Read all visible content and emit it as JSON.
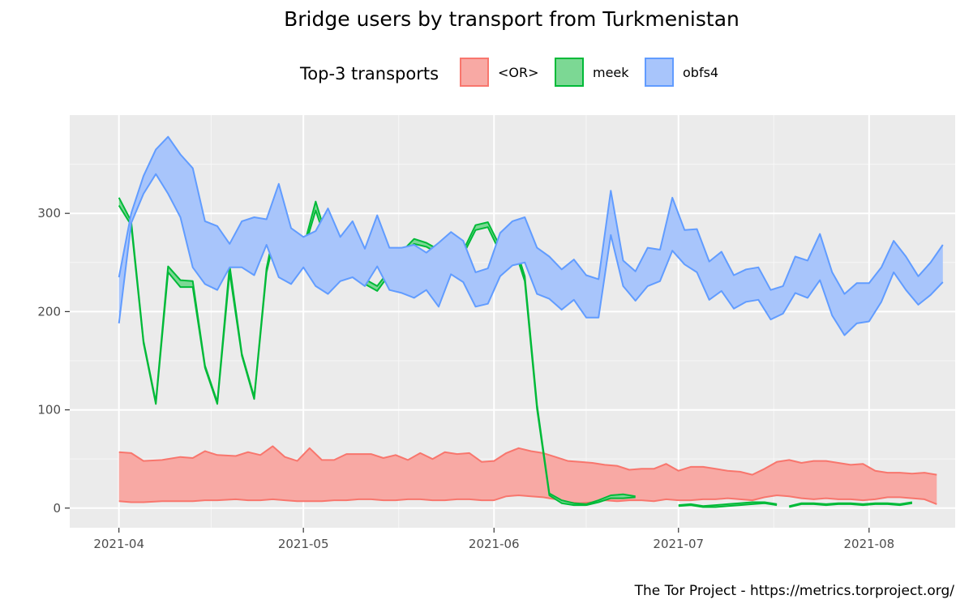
{
  "chart_data": {
    "type": "area",
    "title": "Bridge users by transport from Turkmenistan",
    "caption": "The Tor Project - https://metrics.torproject.org/",
    "legend": {
      "title": "Top-3 transports",
      "position": "top",
      "entries": [
        {
          "label": "<OR>",
          "fill": "#f8a9a4",
          "stroke": "#f8766d"
        },
        {
          "label": "meek",
          "fill": "#7cd894",
          "stroke": "#00ba38"
        },
        {
          "label": "obfs4",
          "fill": "#a8c5fb",
          "stroke": "#619cff"
        }
      ]
    },
    "x_axis": {
      "type": "date",
      "range": [
        "2021-03-24",
        "2021-08-15"
      ],
      "ticks": [
        "2021-04",
        "2021-05",
        "2021-06",
        "2021-07",
        "2021-08"
      ]
    },
    "y_axis": {
      "range": [
        -20,
        400
      ],
      "ticks": [
        0,
        100,
        200,
        300
      ]
    },
    "grid": true,
    "series": [
      {
        "name": "<OR>",
        "fill": "#f8a9a4",
        "stroke": "#f8766d",
        "points": [
          [
            "2021-04-01",
            7,
            57
          ],
          [
            "2021-04-03",
            6,
            56
          ],
          [
            "2021-04-05",
            6,
            48
          ],
          [
            "2021-04-08",
            7,
            49
          ],
          [
            "2021-04-11",
            7,
            52
          ],
          [
            "2021-04-13",
            7,
            51
          ],
          [
            "2021-04-15",
            8,
            58
          ],
          [
            "2021-04-17",
            8,
            54
          ],
          [
            "2021-04-20",
            9,
            53
          ],
          [
            "2021-04-22",
            8,
            57
          ],
          [
            "2021-04-24",
            8,
            54
          ],
          [
            "2021-04-26",
            9,
            63
          ],
          [
            "2021-04-28",
            8,
            52
          ],
          [
            "2021-04-30",
            7,
            48
          ],
          [
            "2021-05-02",
            7,
            61
          ],
          [
            "2021-05-04",
            7,
            49
          ],
          [
            "2021-05-06",
            8,
            49
          ],
          [
            "2021-05-08",
            8,
            55
          ],
          [
            "2021-05-10",
            9,
            55
          ],
          [
            "2021-05-12",
            9,
            55
          ],
          [
            "2021-05-14",
            8,
            51
          ],
          [
            "2021-05-16",
            8,
            54
          ],
          [
            "2021-05-18",
            9,
            49
          ],
          [
            "2021-05-20",
            9,
            56
          ],
          [
            "2021-05-22",
            8,
            50
          ],
          [
            "2021-05-24",
            8,
            57
          ],
          [
            "2021-05-26",
            9,
            55
          ],
          [
            "2021-05-28",
            9,
            56
          ],
          [
            "2021-05-30",
            8,
            47
          ],
          [
            "2021-06-01",
            8,
            48
          ],
          [
            "2021-06-03",
            12,
            56
          ],
          [
            "2021-06-05",
            13,
            61
          ],
          [
            "2021-06-07",
            12,
            58
          ],
          [
            "2021-06-09",
            11,
            56
          ],
          [
            "2021-06-11",
            9,
            52
          ],
          [
            "2021-06-13",
            6,
            48
          ],
          [
            "2021-06-15",
            5,
            47
          ],
          [
            "2021-06-17",
            6,
            46
          ],
          [
            "2021-06-19",
            8,
            44
          ],
          [
            "2021-06-21",
            7,
            43
          ],
          [
            "2021-06-23",
            8,
            39
          ],
          [
            "2021-06-25",
            8,
            40
          ],
          [
            "2021-06-27",
            7,
            40
          ],
          [
            "2021-06-29",
            9,
            45
          ],
          [
            "2021-07-01",
            8,
            38
          ],
          [
            "2021-07-03",
            8,
            42
          ],
          [
            "2021-07-05",
            9,
            42
          ],
          [
            "2021-07-07",
            9,
            40
          ],
          [
            "2021-07-09",
            10,
            38
          ],
          [
            "2021-07-11",
            9,
            37
          ],
          [
            "2021-07-13",
            8,
            34
          ],
          [
            "2021-07-15",
            11,
            40
          ],
          [
            "2021-07-17",
            13,
            47
          ],
          [
            "2021-07-19",
            12,
            49
          ],
          [
            "2021-07-21",
            10,
            46
          ],
          [
            "2021-07-23",
            9,
            48
          ],
          [
            "2021-07-25",
            10,
            48
          ],
          [
            "2021-07-27",
            9,
            46
          ],
          [
            "2021-07-29",
            9,
            44
          ],
          [
            "2021-07-31",
            8,
            45
          ],
          [
            "2021-08-02",
            9,
            38
          ],
          [
            "2021-08-04",
            11,
            36
          ],
          [
            "2021-08-06",
            11,
            36
          ],
          [
            "2021-08-08",
            10,
            35
          ],
          [
            "2021-08-10",
            9,
            36
          ],
          [
            "2021-08-12",
            4,
            34
          ]
        ]
      },
      {
        "name": "meek",
        "fill": "#7cd894",
        "stroke": "#00ba38",
        "segments": [
          [
            [
              "2021-04-01",
              308,
              316
            ],
            [
              "2021-04-03",
              288,
              292
            ],
            [
              "2021-04-05",
              168,
              170
            ],
            [
              "2021-04-07",
              106,
              108
            ],
            [
              "2021-04-09",
              240,
              246
            ],
            [
              "2021-04-11",
              225,
              232
            ],
            [
              "2021-04-13",
              225,
              231
            ],
            [
              "2021-04-15",
              143,
              145
            ],
            [
              "2021-04-17",
              106,
              108
            ],
            [
              "2021-04-19",
              240,
              247
            ],
            [
              "2021-04-21",
              155,
              157
            ],
            [
              "2021-04-23",
              111,
              113
            ],
            [
              "2021-04-25",
              240,
              244
            ],
            [
              "2021-04-27",
              294,
              305
            ],
            [
              "2021-04-29",
              258,
              262
            ],
            [
              "2021-05-01",
              261,
              265
            ],
            [
              "2021-05-03",
              303,
              312
            ],
            [
              "2021-05-05",
              266,
              271
            ],
            [
              "2021-05-07",
              258,
              263
            ],
            [
              "2021-05-09",
              262,
              267
            ],
            [
              "2021-05-11",
              228,
              233
            ],
            [
              "2021-05-13",
              221,
              226
            ],
            [
              "2021-05-15",
              238,
              242
            ],
            [
              "2021-05-17",
              256,
              261
            ],
            [
              "2021-05-19",
              269,
              274
            ],
            [
              "2021-05-21",
              266,
              270
            ],
            [
              "2021-05-23",
              259,
              263
            ],
            [
              "2021-05-25",
              264,
              268
            ],
            [
              "2021-05-27",
              258,
              262
            ],
            [
              "2021-05-29",
              283,
              288
            ],
            [
              "2021-05-31",
              286,
              291
            ],
            [
              "2021-06-02",
              260,
              266
            ],
            [
              "2021-06-04",
              270,
              276
            ],
            [
              "2021-06-06",
              231,
              236
            ],
            [
              "2021-06-08",
              101,
              105
            ],
            [
              "2021-06-10",
              13,
              15
            ],
            [
              "2021-06-12",
              5,
              8
            ],
            [
              "2021-06-14",
              3,
              5
            ],
            [
              "2021-06-16",
              3,
              4
            ],
            [
              "2021-06-18",
              6,
              8
            ],
            [
              "2021-06-20",
              10,
              13
            ],
            [
              "2021-06-22",
              10,
              14
            ],
            [
              "2021-06-24",
              11,
              12
            ]
          ],
          [
            [
              "2021-07-01",
              2,
              3
            ],
            [
              "2021-07-03",
              3,
              4
            ],
            [
              "2021-07-05",
              1,
              2
            ],
            [
              "2021-07-07",
              1,
              3
            ],
            [
              "2021-07-09",
              2,
              4
            ],
            [
              "2021-07-11",
              3,
              5
            ],
            [
              "2021-07-13",
              4,
              6
            ],
            [
              "2021-07-15",
              5,
              6
            ],
            [
              "2021-07-17",
              3,
              4
            ]
          ],
          [
            [
              "2021-07-19",
              1,
              2
            ],
            [
              "2021-07-21",
              4,
              5
            ],
            [
              "2021-07-23",
              4,
              5
            ],
            [
              "2021-07-25",
              3,
              4
            ],
            [
              "2021-07-27",
              4,
              5
            ],
            [
              "2021-07-29",
              4,
              5
            ],
            [
              "2021-07-31",
              3,
              4
            ],
            [
              "2021-08-02",
              4,
              5
            ],
            [
              "2021-08-04",
              4,
              5
            ],
            [
              "2021-08-06",
              3,
              4
            ],
            [
              "2021-08-08",
              5,
              6
            ]
          ]
        ]
      },
      {
        "name": "obfs4",
        "fill": "#a8c5fb",
        "stroke": "#619cff",
        "points": [
          [
            "2021-04-01",
            188,
            235
          ],
          [
            "2021-04-03",
            290,
            300
          ],
          [
            "2021-04-05",
            320,
            338
          ],
          [
            "2021-04-07",
            340,
            365
          ],
          [
            "2021-04-09",
            320,
            378
          ],
          [
            "2021-04-11",
            296,
            360
          ],
          [
            "2021-04-13",
            245,
            346
          ],
          [
            "2021-04-15",
            228,
            292
          ],
          [
            "2021-04-17",
            222,
            287
          ],
          [
            "2021-04-19",
            245,
            269
          ],
          [
            "2021-04-21",
            245,
            292
          ],
          [
            "2021-04-23",
            237,
            296
          ],
          [
            "2021-04-25",
            268,
            294
          ],
          [
            "2021-04-27",
            235,
            330
          ],
          [
            "2021-04-29",
            228,
            285
          ],
          [
            "2021-05-01",
            245,
            276
          ],
          [
            "2021-05-03",
            226,
            282
          ],
          [
            "2021-05-05",
            218,
            305
          ],
          [
            "2021-05-07",
            231,
            276
          ],
          [
            "2021-05-09",
            235,
            292
          ],
          [
            "2021-05-11",
            226,
            264
          ],
          [
            "2021-05-13",
            246,
            298
          ],
          [
            "2021-05-15",
            222,
            265
          ],
          [
            "2021-05-17",
            219,
            265
          ],
          [
            "2021-05-19",
            214,
            268
          ],
          [
            "2021-05-21",
            222,
            260
          ],
          [
            "2021-05-23",
            205,
            270
          ],
          [
            "2021-05-25",
            238,
            281
          ],
          [
            "2021-05-27",
            230,
            272
          ],
          [
            "2021-05-29",
            205,
            240
          ],
          [
            "2021-05-31",
            208,
            244
          ],
          [
            "2021-06-02",
            236,
            280
          ],
          [
            "2021-06-04",
            247,
            292
          ],
          [
            "2021-06-06",
            250,
            296
          ],
          [
            "2021-06-08",
            218,
            265
          ],
          [
            "2021-06-10",
            213,
            256
          ],
          [
            "2021-06-12",
            202,
            243
          ],
          [
            "2021-06-14",
            212,
            253
          ],
          [
            "2021-06-16",
            194,
            237
          ],
          [
            "2021-06-18",
            194,
            233
          ],
          [
            "2021-06-20",
            278,
            323
          ],
          [
            "2021-06-22",
            226,
            252
          ],
          [
            "2021-06-24",
            211,
            241
          ],
          [
            "2021-06-26",
            226,
            265
          ],
          [
            "2021-06-28",
            231,
            263
          ],
          [
            "2021-06-30",
            262,
            316
          ],
          [
            "2021-07-02",
            248,
            283
          ],
          [
            "2021-07-04",
            240,
            284
          ],
          [
            "2021-07-06",
            212,
            251
          ],
          [
            "2021-07-08",
            221,
            261
          ],
          [
            "2021-07-10",
            203,
            237
          ],
          [
            "2021-07-12",
            210,
            243
          ],
          [
            "2021-07-14",
            212,
            245
          ],
          [
            "2021-07-16",
            192,
            222
          ],
          [
            "2021-07-18",
            198,
            226
          ],
          [
            "2021-07-20",
            219,
            256
          ],
          [
            "2021-07-22",
            214,
            252
          ],
          [
            "2021-07-24",
            232,
            279
          ],
          [
            "2021-07-26",
            196,
            240
          ],
          [
            "2021-07-28",
            176,
            218
          ],
          [
            "2021-07-30",
            188,
            229
          ],
          [
            "2021-08-01",
            190,
            229
          ],
          [
            "2021-08-03",
            210,
            245
          ],
          [
            "2021-08-05",
            240,
            272
          ],
          [
            "2021-08-07",
            222,
            256
          ],
          [
            "2021-08-09",
            207,
            236
          ],
          [
            "2021-08-11",
            217,
            250
          ],
          [
            "2021-08-13",
            230,
            268
          ]
        ]
      }
    ]
  }
}
